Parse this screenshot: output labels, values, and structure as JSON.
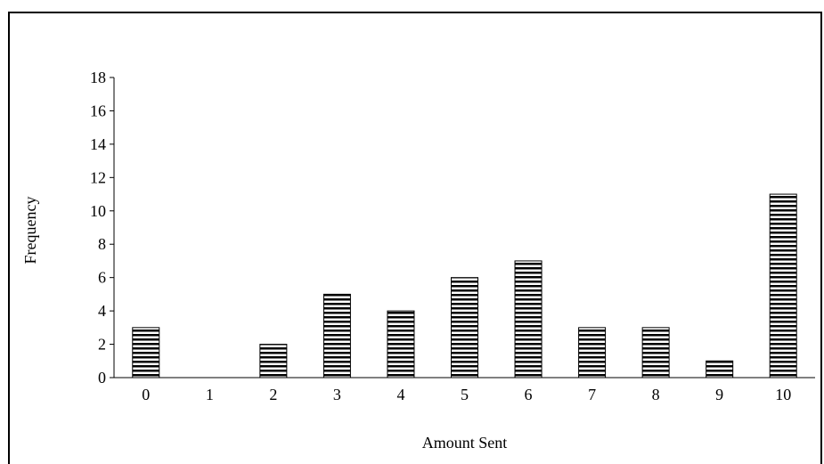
{
  "chart_data": {
    "type": "bar",
    "title": "",
    "xlabel": "Amount Sent",
    "ylabel": "Frequency",
    "categories": [
      "0",
      "1",
      "2",
      "3",
      "4",
      "5",
      "6",
      "7",
      "8",
      "9",
      "10"
    ],
    "values": [
      3,
      0,
      2,
      5,
      4,
      6,
      7,
      3,
      3,
      1,
      11
    ],
    "ylim": [
      0,
      18
    ],
    "yticks": [
      "0",
      "2",
      "4",
      "6",
      "8",
      "10",
      "12",
      "14",
      "16",
      "18"
    ],
    "grid": false,
    "legend": "none",
    "bar_fill": "horizontal-stripes",
    "colors": {
      "bar_stroke": "#000000",
      "bar_fill": "#ffffff",
      "axis": "#000000"
    }
  }
}
